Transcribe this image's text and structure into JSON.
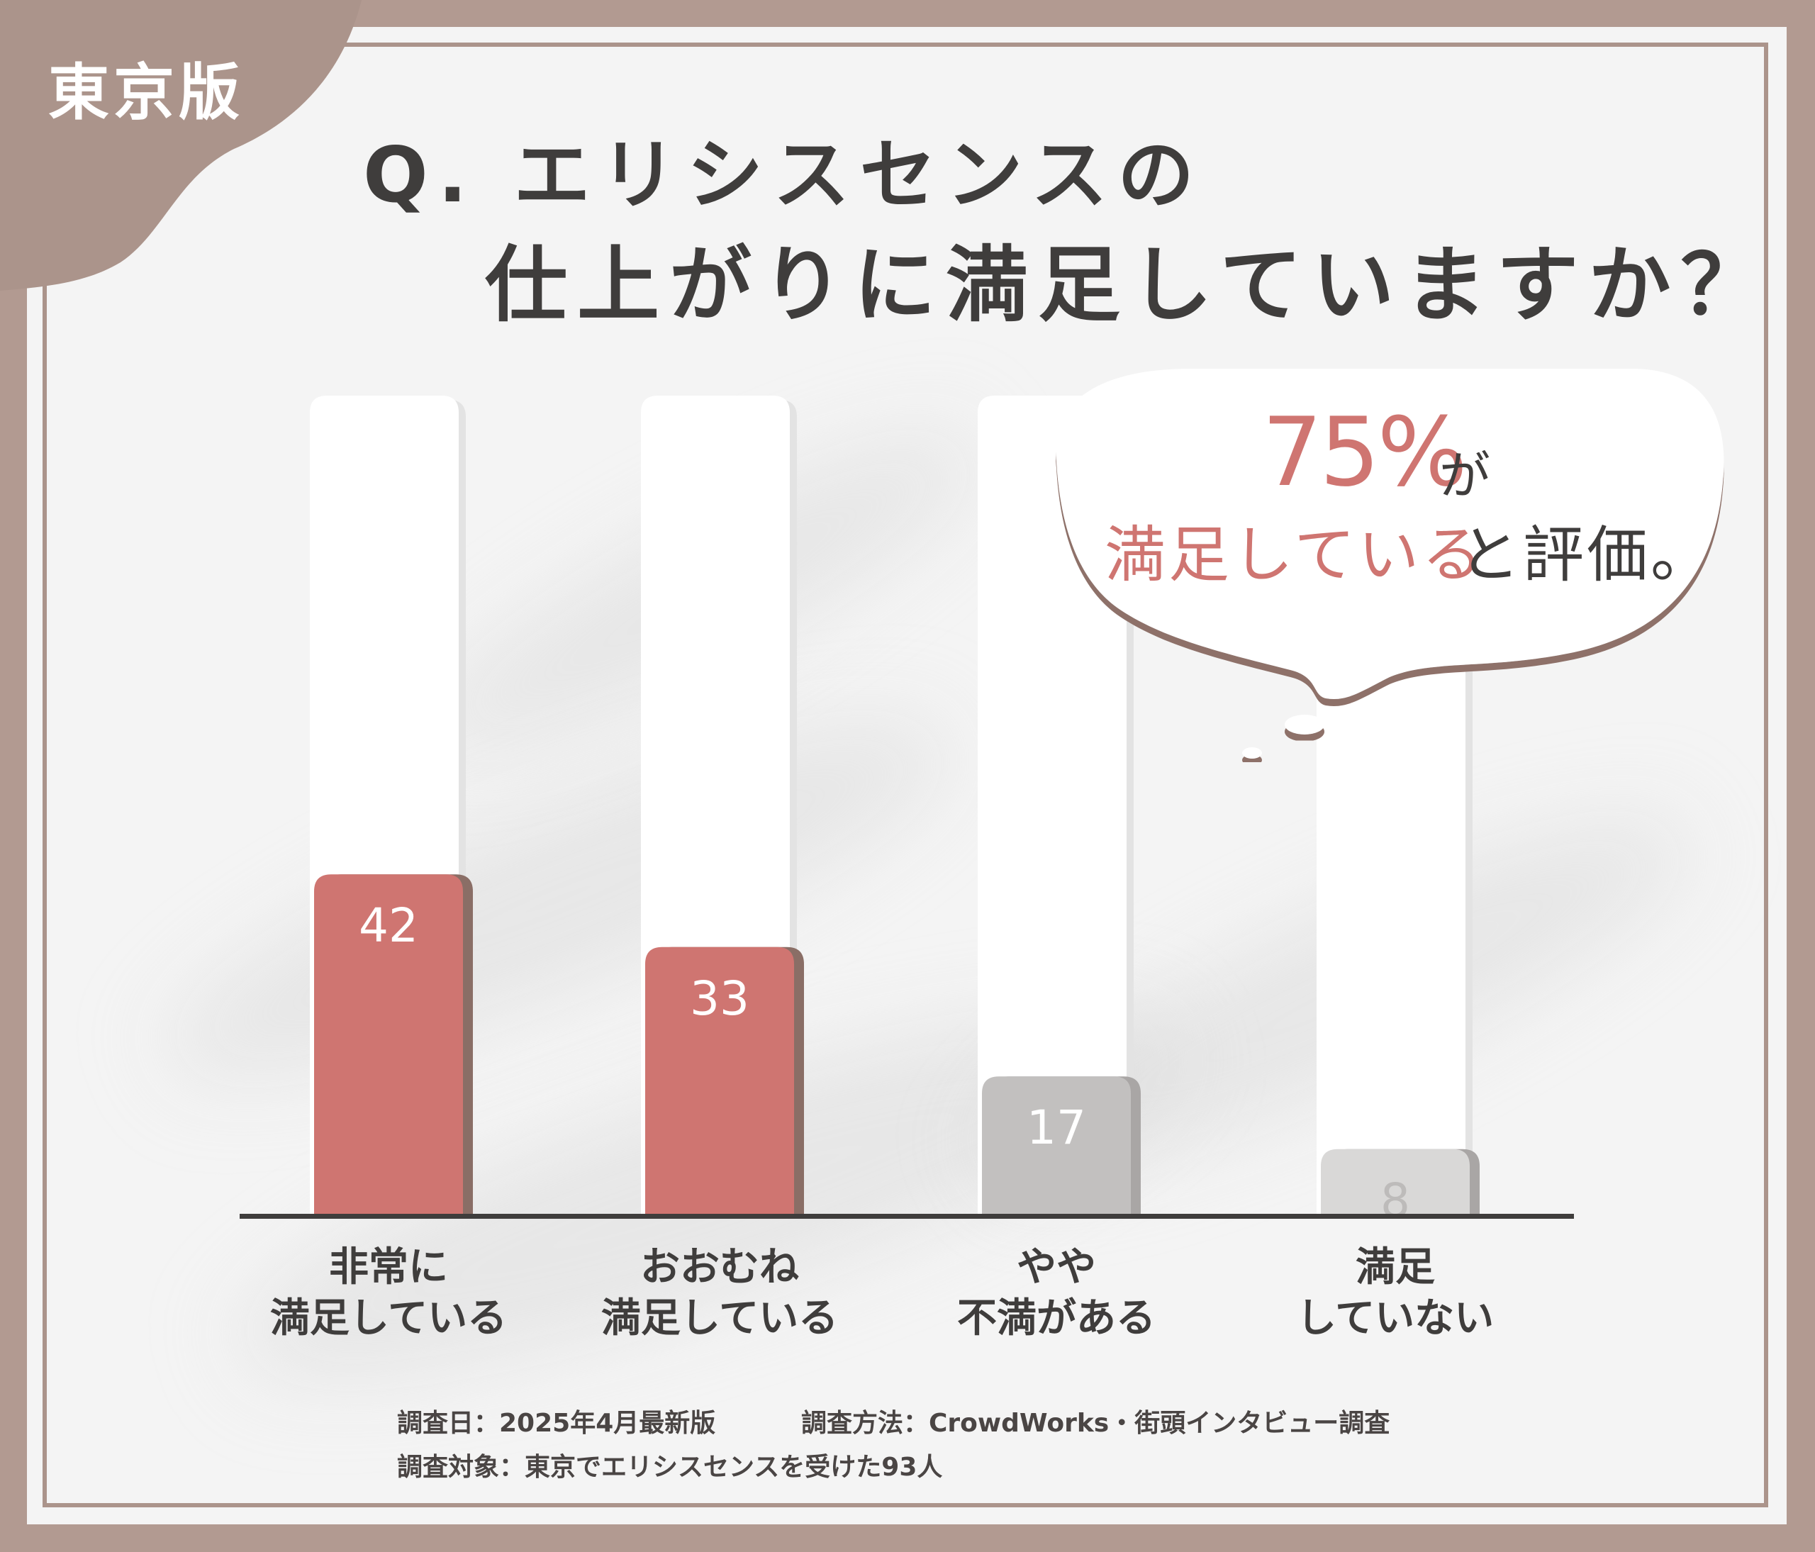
{
  "badge": "東京版",
  "title": {
    "line1": "Q. エリシスセンスの",
    "line2": "仕上がりに満足していますか？"
  },
  "callout": {
    "percent": "75%",
    "percent_suffix": "が",
    "line2_highlight": "満足している",
    "line2_rest": "と評価。"
  },
  "colors": {
    "highlight": "#cf7571",
    "mid": "#c2c0bf",
    "low": "#d9d8d7",
    "frame": "#ab948b",
    "text": "#3f3d3c"
  },
  "chart_data": {
    "type": "bar",
    "categories": [
      "非常に\n満足している",
      "おおむね\n満足している",
      "やや\n不満がある",
      "満足\nしていない"
    ],
    "values": [
      42,
      33,
      17,
      8
    ],
    "value_labels": [
      "42",
      "33",
      "17",
      "8"
    ],
    "bar_colors": [
      "#cf7571",
      "#cf7571",
      "#c2c0bf",
      "#d9d8d7"
    ],
    "label_colors": [
      "#ffffff",
      "#ffffff",
      "#ffffff",
      "#bdbbba"
    ],
    "ylim": [
      0,
      100
    ],
    "title": "",
    "xlabel": "",
    "ylabel": ""
  },
  "footer": {
    "date": "調査日：2025年4月最新版",
    "method": "調査方法：CrowdWorks・街頭インタビュー調査",
    "target": "調査対象：東京でエリシスセンスを受けた93人"
  }
}
